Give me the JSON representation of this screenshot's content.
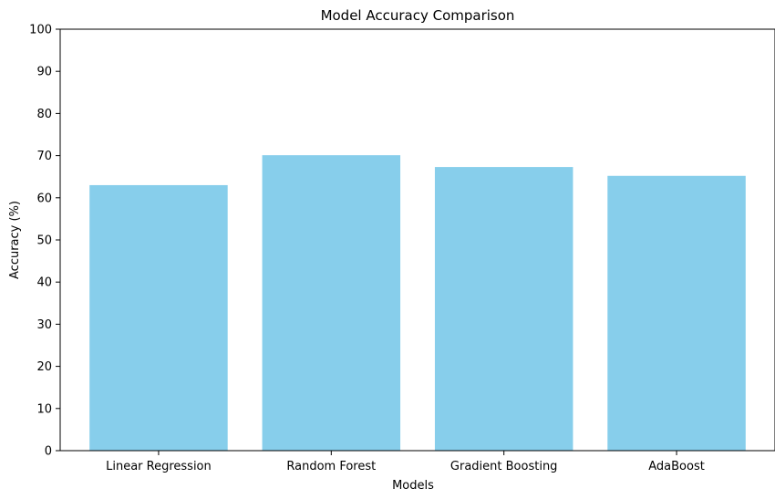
{
  "chart_data": {
    "type": "bar",
    "title": "Model Accuracy Comparison",
    "xlabel": "Models",
    "ylabel": "Accuracy (%)",
    "categories": [
      "Linear Regression",
      "Random Forest",
      "Gradient Boosting",
      "AdaBoost"
    ],
    "values": [
      63.0,
      70.1,
      67.3,
      65.2
    ],
    "ylim": [
      0,
      100
    ],
    "yticks": [
      0,
      10,
      20,
      30,
      40,
      50,
      60,
      70,
      80,
      90,
      100
    ],
    "bar_color": "#87CEEB",
    "grid": false,
    "legend": "none"
  }
}
